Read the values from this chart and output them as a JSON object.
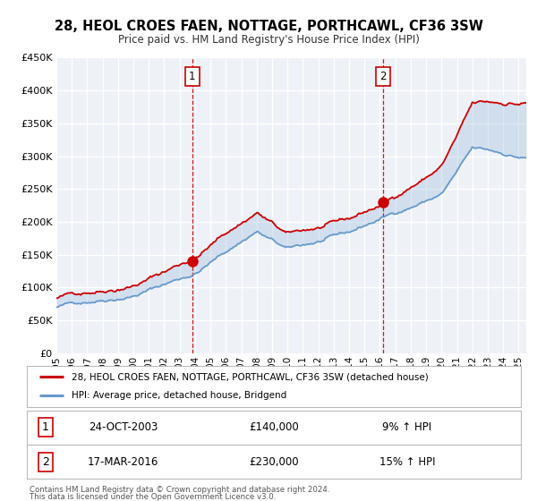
{
  "title": "28, HEOL CROES FAEN, NOTTAGE, PORTHCAWL, CF36 3SW",
  "subtitle": "Price paid vs. HM Land Registry's House Price Index (HPI)",
  "ylim": [
    0,
    450000
  ],
  "xlim_start": 1995.0,
  "xlim_end": 2025.5,
  "yticks": [
    0,
    50000,
    100000,
    150000,
    200000,
    250000,
    300000,
    350000,
    400000,
    450000
  ],
  "ytick_labels": [
    "£0",
    "£50K",
    "£100K",
    "£150K",
    "£200K",
    "£250K",
    "£300K",
    "£350K",
    "£400K",
    "£450K"
  ],
  "xtick_years": [
    1995,
    1996,
    1997,
    1998,
    1999,
    2000,
    2001,
    2002,
    2003,
    2004,
    2005,
    2006,
    2007,
    2008,
    2009,
    2010,
    2011,
    2012,
    2013,
    2014,
    2015,
    2016,
    2017,
    2018,
    2019,
    2020,
    2021,
    2022,
    2023,
    2024,
    2025
  ],
  "sale1_x": 2003.81,
  "sale1_y": 140000,
  "sale1_label": "1",
  "sale1_date": "24-OCT-2003",
  "sale1_price": "£140,000",
  "sale1_hpi": "9% ↑ HPI",
  "sale2_x": 2016.21,
  "sale2_y": 230000,
  "sale2_label": "2",
  "sale2_date": "17-MAR-2016",
  "sale2_price": "£230,000",
  "sale2_hpi": "15% ↑ HPI",
  "property_color": "#cc0000",
  "hpi_color": "#6699cc",
  "marker_color": "#cc0000",
  "marker_size": 8,
  "legend_label_property": "28, HEOL CROES FAEN, NOTTAGE, PORTHCAWL, CF36 3SW (detached house)",
  "legend_label_hpi": "HPI: Average price, detached house, Bridgend",
  "footnote1": "Contains HM Land Registry data © Crown copyright and database right 2024.",
  "footnote2": "This data is licensed under the Open Government Licence v3.0.",
  "background_color": "#ffffff",
  "plot_bg_color": "#eef2f8",
  "grid_color": "#ffffff"
}
